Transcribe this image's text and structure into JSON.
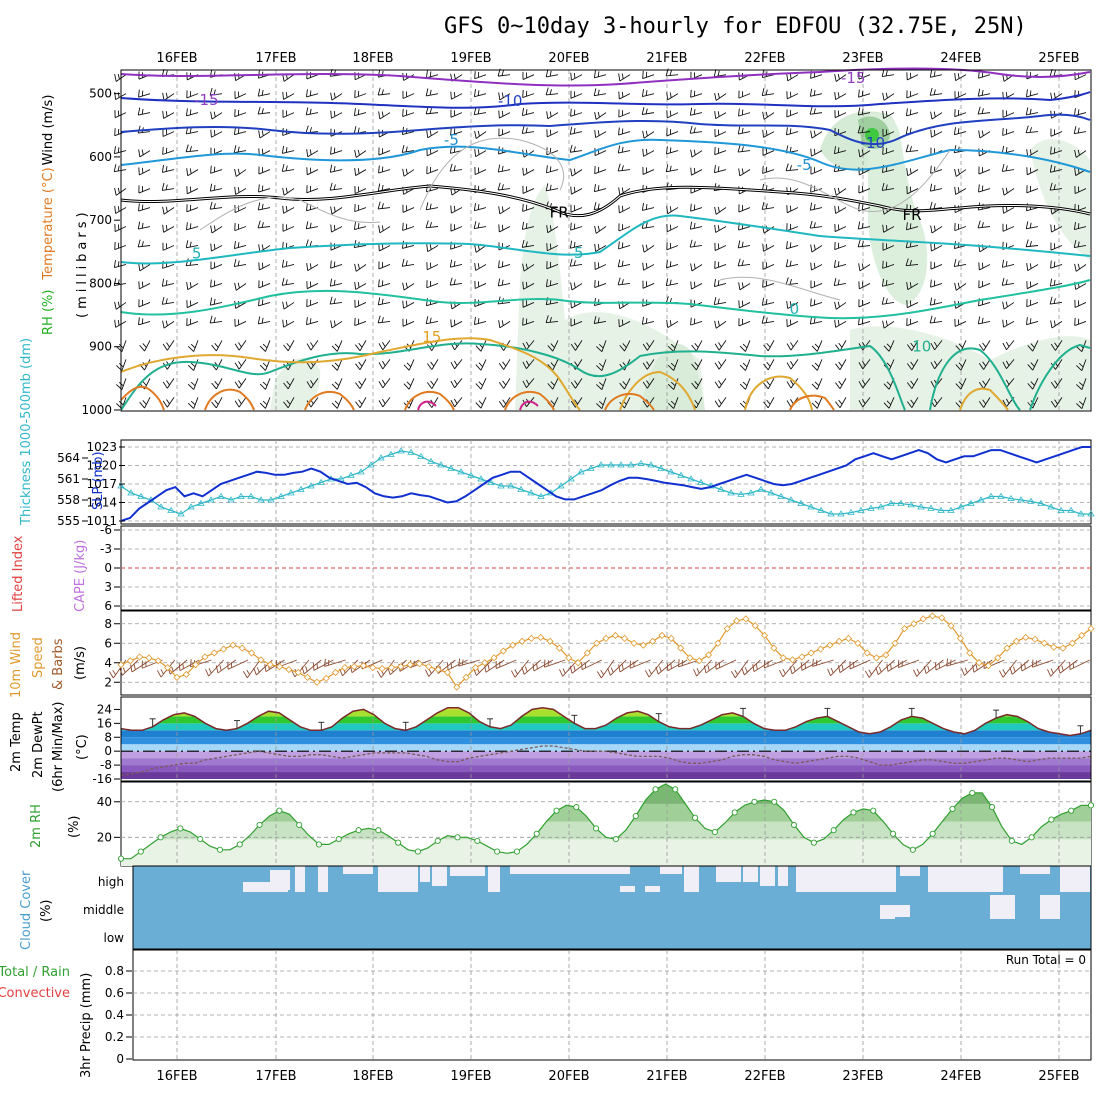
{
  "title": "GFS 0~10day 3-hourly for EDFOU (32.75E, 25N)",
  "dates": [
    "16FEB",
    "17FEB",
    "18FEB",
    "19FEB",
    "20FEB",
    "21FEB",
    "22FEB",
    "23FEB",
    "24FEB",
    "25FEB"
  ],
  "colors": {
    "grid": "#9a9a9a",
    "frame": "#000000"
  },
  "chart_data": [
    {
      "type": "heatmap",
      "panel": "upper-air",
      "ylabel_parts": [
        "RH (%)",
        "Temperature (°C)",
        "Wind (m/s)",
        "(millibars)"
      ],
      "y_ticks": [
        "500",
        "600",
        "700",
        "800",
        "900",
        "1000"
      ],
      "ylim": [
        1000,
        450
      ],
      "contour_labels": [
        {
          "text": "-15",
          "x": "16.3FEB",
          "p": 510,
          "color": "#9040c0"
        },
        {
          "text": "-15",
          "x": "22.9FEB",
          "p": 475,
          "color": "#9040c0"
        },
        {
          "text": "-10",
          "x": "19.4FEB",
          "p": 512,
          "color": "#2040c0"
        },
        {
          "text": "-10",
          "x": "23.1FEB",
          "p": 578,
          "color": "#2040c0"
        },
        {
          "text": "-5",
          "x": "18.8FEB",
          "p": 573,
          "color": "#2090d0"
        },
        {
          "text": "-5",
          "x": "22.4FEB",
          "p": 613,
          "color": "#2090d0"
        },
        {
          "text": "FR",
          "x": "19.9FEB",
          "p": 688,
          "color": "#000000"
        },
        {
          "text": "FR",
          "x": "23.5FEB",
          "p": 692,
          "color": "#000000"
        },
        {
          "text": "5",
          "x": "16.2FEB",
          "p": 753,
          "color": "#20b0b0"
        },
        {
          "text": "5",
          "x": "20.1FEB",
          "p": 752,
          "color": "#20b0b0"
        },
        {
          "text": "0",
          "x": "22.3FEB",
          "p": 840,
          "color": "#20b0b0"
        },
        {
          "text": "10",
          "x": "23.6FEB",
          "p": 900,
          "color": "#20b090"
        },
        {
          "text": "15",
          "x": "18.6FEB",
          "p": 885,
          "color": "#e0a020"
        }
      ]
    },
    {
      "type": "line",
      "panel": "slp-thickness",
      "ylabel_left": "Thickness 1000-500mb (dm)",
      "ylabel_right": "SLP (mb)",
      "y_ticks_left": [
        "555",
        "558",
        "561",
        "564"
      ],
      "y_ticks_right": [
        "1011",
        "1014",
        "1017",
        "1020",
        "1023"
      ],
      "series": [
        {
          "name": "SLP (mb)",
          "color": "#1030d0",
          "values": [
            1011,
            1011.5,
            1013,
            1014,
            1015,
            1016,
            1016.5,
            1015,
            1015.5,
            1015,
            1016,
            1017,
            1017.5,
            1018,
            1018.5,
            1019,
            1018.8,
            1018.5,
            1018.5,
            1018.8,
            1019,
            1019.5,
            1019,
            1018,
            1017.5,
            1017,
            1017.2,
            1016.5,
            1015.5,
            1015,
            1014.8,
            1015,
            1015.5,
            1015.2,
            1015,
            1014.5,
            1014,
            1014.2,
            1015,
            1016,
            1017,
            1018,
            1018.5,
            1019,
            1019,
            1018,
            1017,
            1016,
            1015,
            1014.5,
            1014.5,
            1015,
            1015.5,
            1016,
            1016.8,
            1017.5,
            1018,
            1018,
            1017.8,
            1017.5,
            1017.2,
            1017,
            1016.8,
            1016.5,
            1016.2,
            1016.5,
            1017,
            1017.5,
            1018,
            1018.5,
            1018,
            1017.5,
            1017,
            1016.8,
            1017,
            1017.5,
            1018,
            1018.5,
            1019,
            1019.5,
            1020,
            1021,
            1021.5,
            1022,
            1021.5,
            1021,
            1021.5,
            1022,
            1022.5,
            1022,
            1021,
            1020.5,
            1021,
            1021.5,
            1021.5,
            1022,
            1022.5,
            1022.5,
            1022,
            1021.5,
            1021,
            1020.5,
            1021,
            1021.5,
            1022,
            1022.5,
            1023,
            1023
          ]
        },
        {
          "name": "Thickness (dm)",
          "color": "#30b8c8",
          "values": [
            560,
            559,
            558.5,
            558,
            557,
            556.5,
            556,
            557,
            557.5,
            558,
            558.5,
            558,
            558.5,
            558.5,
            558,
            558,
            558.5,
            559,
            559.5,
            560,
            560.5,
            561,
            561,
            561.5,
            562,
            563,
            564,
            564.5,
            565,
            564.8,
            564.2,
            563.5,
            563,
            562.5,
            562,
            561.5,
            561,
            560.5,
            560,
            560,
            559.5,
            559,
            558.5,
            559,
            560,
            561,
            562,
            562.5,
            563,
            563,
            563,
            563,
            563.2,
            563,
            562.5,
            562,
            561.5,
            561,
            560.5,
            560,
            559.5,
            559,
            558.8,
            559,
            559.5,
            559,
            558.5,
            558,
            557.5,
            557,
            556.5,
            556,
            556,
            556.2,
            556.5,
            556.8,
            557,
            557.5,
            557.5,
            557.3,
            557,
            556.8,
            556.5,
            556.5,
            557,
            557.5,
            558,
            558.5,
            558.5,
            558.2,
            558,
            557.8,
            557.5,
            557,
            556.5,
            556.5,
            556,
            556
          ]
        }
      ]
    },
    {
      "type": "line",
      "panel": "cape-li",
      "ylabel_parts": [
        "Lifted Index",
        "CAPE (J/kg)"
      ],
      "y_ticks": [
        "-6",
        "-3",
        "0",
        "3",
        "6"
      ],
      "series": [
        {
          "name": "Lifted Index",
          "color": "#e04040",
          "values": [
            0
          ]
        }
      ]
    },
    {
      "type": "line",
      "panel": "10m-wind",
      "ylabel_parts": [
        "10m Wind",
        "Speed",
        "& Barbs",
        "(m/s)"
      ],
      "y_ticks": [
        "2",
        "4",
        "6",
        "8"
      ],
      "ylim": [
        1,
        9
      ],
      "series": [
        {
          "name": "10m Wind Speed",
          "color": "#e09a30",
          "values": [
            3.8,
            4.2,
            4.6,
            4.5,
            4.2,
            3.5,
            2.5,
            2.8,
            3.8,
            4.6,
            5.0,
            5.4,
            5.8,
            5.5,
            5.0,
            4.3,
            3.8,
            3.6,
            3.3,
            3.0,
            2.5,
            2.0,
            2.4,
            3.0,
            3.5,
            3.6,
            3.7,
            3.5,
            3.4,
            3.5,
            3.6,
            3.8,
            3.9,
            3.6,
            3.3,
            3.0,
            1.5,
            2.5,
            3.5,
            4.0,
            4.5,
            5.2,
            5.8,
            6.2,
            6.5,
            6.6,
            6.2,
            5.5,
            4.5,
            4.0,
            5.0,
            6.0,
            6.5,
            6.8,
            6.5,
            6.0,
            5.8,
            6.2,
            6.8,
            6.5,
            5.5,
            4.5,
            4.2,
            4.8,
            6.0,
            7.5,
            8.3,
            8.5,
            7.8,
            6.8,
            5.5,
            4.5,
            4.3,
            4.6,
            5.0,
            5.4,
            5.8,
            6.2,
            6.5,
            6.0,
            5.0,
            4.5,
            4.8,
            6.0,
            7.5,
            8.0,
            8.5,
            8.8,
            8.6,
            7.8,
            6.5,
            5.0,
            4.0,
            3.7,
            4.5,
            5.5,
            6.2,
            6.6,
            6.4,
            6.0,
            5.6,
            5.5,
            6.0,
            6.8,
            7.5
          ]
        }
      ]
    },
    {
      "type": "area",
      "panel": "2m-temp",
      "ylabel_parts": [
        "2m Temp",
        "2m DewPt",
        "(6hr Min/Max)",
        "(°C)"
      ],
      "y_ticks": [
        "24",
        "16",
        "8",
        "0",
        "-8",
        "-16"
      ],
      "ylim": [
        -16,
        30
      ],
      "series": [
        {
          "name": "2m Temp",
          "color": "#7a2a2a",
          "values": [
            13,
            12,
            12,
            14,
            18,
            21,
            22,
            20,
            16,
            13,
            12,
            13,
            16,
            20,
            23,
            22,
            18,
            14,
            12,
            12,
            14,
            19,
            23,
            24,
            21,
            16,
            13,
            12,
            14,
            18,
            22,
            25,
            25,
            22,
            17,
            14,
            13,
            15,
            20,
            24,
            25,
            24,
            20,
            16,
            13,
            13,
            15,
            19,
            22,
            23,
            21,
            17,
            14,
            13,
            13,
            15,
            18,
            21,
            22,
            20,
            16,
            13,
            12,
            12,
            14,
            17,
            19,
            20,
            17,
            14,
            11,
            10,
            11,
            14,
            18,
            20,
            19,
            16,
            13,
            11,
            10,
            12,
            16,
            19,
            21,
            20,
            17,
            13,
            11,
            10,
            9,
            10,
            12
          ]
        },
        {
          "name": "2m DewPt",
          "color": "#7a5a5a",
          "values": [
            -14,
            -13,
            -12,
            -10,
            -9,
            -8,
            -7,
            -7,
            -5,
            -4,
            -3,
            -2,
            -1,
            0,
            -1,
            -2,
            -3,
            -3,
            -2,
            -2,
            -3,
            -4,
            -3,
            -2,
            -1,
            -1,
            -1,
            -1,
            -2,
            -3,
            -5,
            -6,
            -6,
            -4,
            -3,
            -2,
            -1,
            0,
            1,
            2,
            3,
            3,
            2,
            1,
            0,
            0,
            0,
            -1,
            -2,
            -3,
            -3,
            -3,
            -4,
            -6,
            -7,
            -7,
            -6,
            -5,
            -3,
            -2,
            -2,
            -3,
            -5,
            -6,
            -7,
            -6,
            -5,
            -4,
            -3,
            -3,
            -4,
            -6,
            -8,
            -8,
            -7,
            -6,
            -5,
            -5,
            -6,
            -7,
            -7,
            -6,
            -5,
            -4,
            -4,
            -5,
            -6,
            -5,
            -4,
            -4,
            -4,
            -4,
            -3
          ]
        }
      ]
    },
    {
      "type": "area",
      "panel": "2m-rh",
      "ylabel_parts": [
        "2m RH",
        "(%)"
      ],
      "y_ticks": [
        "20",
        "40"
      ],
      "ylim": [
        5,
        50
      ],
      "series": [
        {
          "name": "2m RH",
          "color": "#30a030",
          "values": [
            8,
            8,
            12,
            16,
            20,
            23,
            25,
            23,
            19,
            15,
            13,
            13,
            16,
            21,
            27,
            32,
            35,
            33,
            27,
            21,
            16,
            16,
            19,
            22,
            24,
            25,
            24,
            21,
            17,
            13,
            12,
            14,
            18,
            21,
            20,
            20,
            18,
            15,
            12,
            11,
            12,
            16,
            22,
            29,
            35,
            38,
            37,
            32,
            25,
            20,
            19,
            24,
            32,
            41,
            47,
            50,
            47,
            39,
            31,
            25,
            23,
            28,
            34,
            38,
            40,
            41,
            40,
            35,
            27,
            20,
            17,
            19,
            24,
            30,
            34,
            36,
            35,
            29,
            22,
            16,
            13,
            16,
            22,
            29,
            36,
            42,
            45,
            45,
            37,
            26,
            18,
            16,
            20,
            26,
            30,
            33,
            35,
            38,
            38
          ]
        }
      ]
    },
    {
      "type": "bar",
      "panel": "cloud-cover",
      "ylabel_parts": [
        "Cloud Cover",
        "(%)"
      ],
      "categories": [
        "high",
        "middle",
        "low"
      ]
    },
    {
      "type": "bar",
      "panel": "precip",
      "ylabel_parts": [
        "Total / Rain",
        "Convective",
        "3hr Precip (mm)"
      ],
      "y_ticks": [
        "0",
        "0.2",
        "0.4",
        "0.6",
        "0.8"
      ],
      "ylim": [
        0,
        0.9
      ],
      "annotation": "Run Total = 0"
    }
  ]
}
